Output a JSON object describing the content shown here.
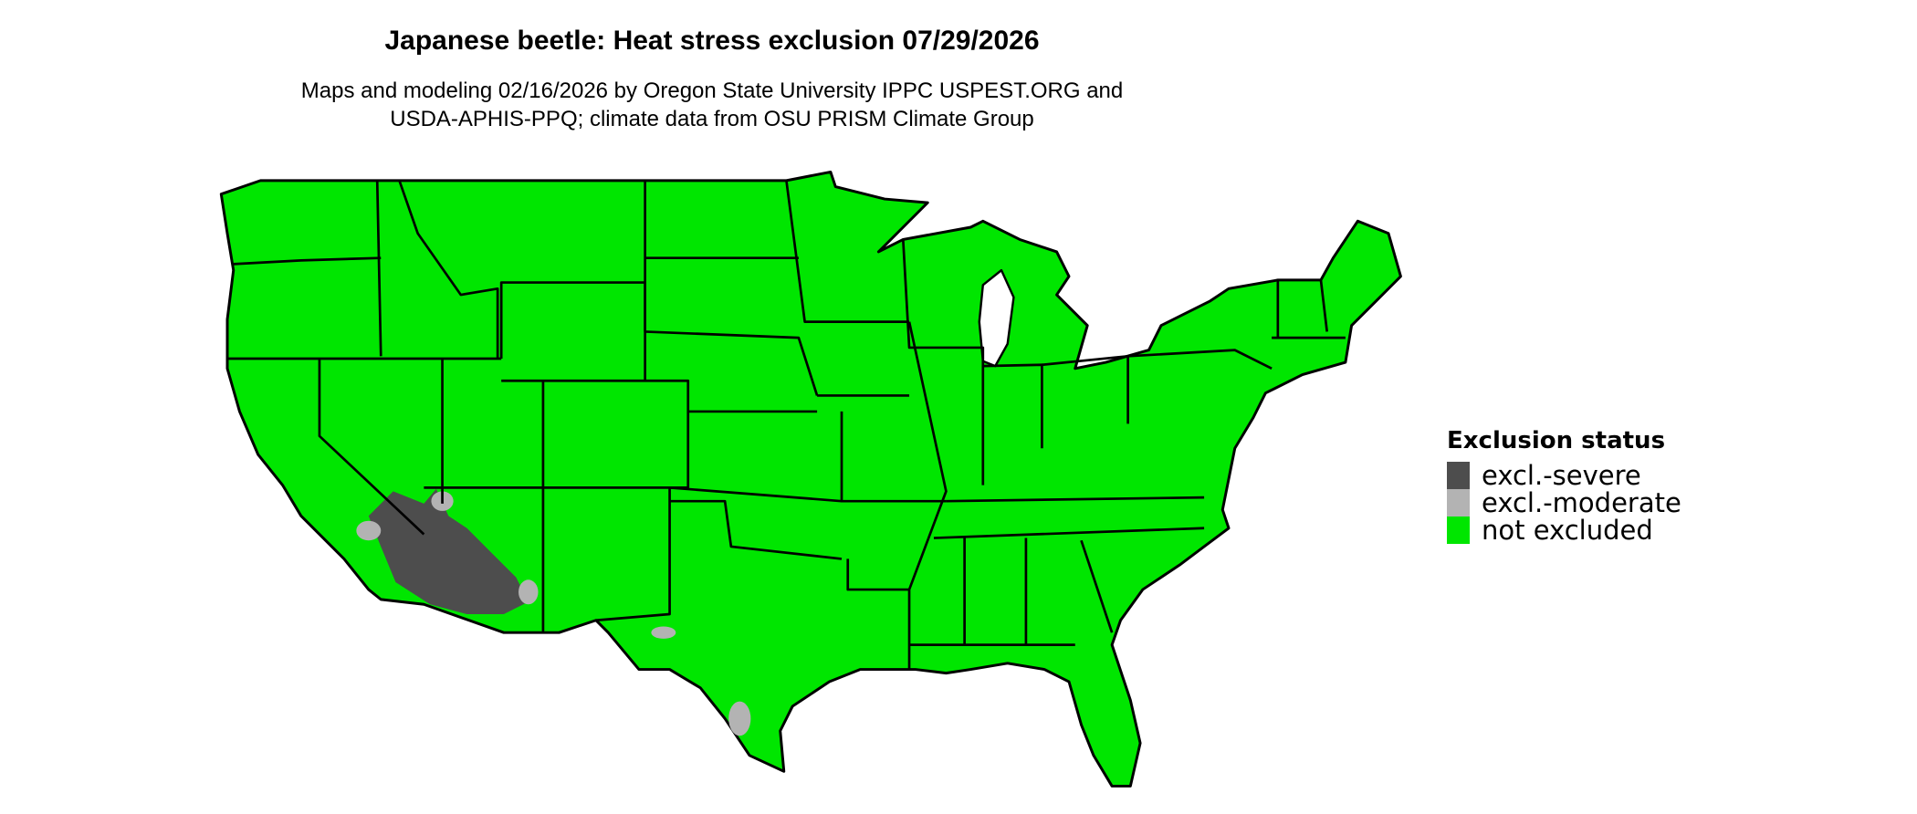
{
  "title": "Japanese beetle: Heat stress exclusion 07/29/2026",
  "subtitle_lines": [
    "Maps and modeling 02/16/2026 by Oregon State University IPPC USPEST.ORG and",
    "USDA-APHIS-PPQ; climate data from OSU PRISM Climate Group"
  ],
  "legend": {
    "title": "Exclusion status",
    "items": [
      {
        "label": "excl.-severe",
        "color": "#4d4d4d"
      },
      {
        "label": "excl.-moderate",
        "color": "#b3b3b3"
      },
      {
        "label": "not excluded",
        "color": "#00e600"
      }
    ]
  },
  "map": {
    "region": "Contiguous United States",
    "border_color": "#000000"
  }
}
